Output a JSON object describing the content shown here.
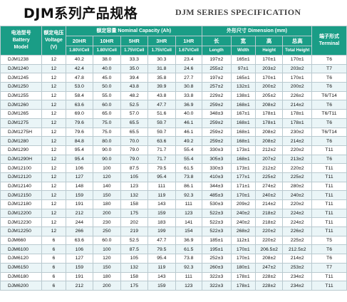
{
  "header": {
    "title": "DJM系列产品规格",
    "subtitle": "DJM SERIES SPECIFICATION"
  },
  "table": {
    "col_model": [
      "电池型号",
      "Battery",
      "Model"
    ],
    "col_voltage": [
      "额定电压",
      "Voltage (V)"
    ],
    "capacity_group": "额定容量 Nominal Capacity (Ah)",
    "dimension_group": "外形尺寸 Dimension (mm)",
    "col_terminal": [
      "端子形式",
      "Terminal"
    ],
    "capacity_cols": [
      {
        "rate": "20HR",
        "cutoff": "1.80V/Cell"
      },
      {
        "rate": "10HR",
        "cutoff": "1.80V/Cell"
      },
      {
        "rate": "5HR",
        "cutoff": "1.75V/Cell"
      },
      {
        "rate": "3HR",
        "cutoff": "1.75V/Cell"
      },
      {
        "rate": "1HR",
        "cutoff": "1.67V/Cell"
      }
    ],
    "dimension_cols": [
      {
        "zh": "长",
        "en": "Length"
      },
      {
        "zh": "宽",
        "en": "Width"
      },
      {
        "zh": "高",
        "en": "Height"
      },
      {
        "zh": "总高",
        "en": "Total Height"
      }
    ],
    "rows": [
      [
        "DJM1238",
        "12",
        "40.2",
        "38.0",
        "33.3",
        "30.3",
        "23.4",
        "197±2",
        "165±1",
        "170±1",
        "170±1",
        "T6"
      ],
      [
        "DJM1240",
        "12",
        "42.4",
        "40.0",
        "35.0",
        "31.8",
        "24.6",
        "255±2",
        "97±1",
        "203±2",
        "203±2",
        "T7"
      ],
      [
        "DJM1245",
        "12",
        "47.8",
        "45.0",
        "39.4",
        "35.8",
        "27.7",
        "197±2",
        "165±1",
        "170±1",
        "170±1",
        "T6"
      ],
      [
        "DJM1250",
        "12",
        "53.0",
        "50.0",
        "43.8",
        "39.9",
        "30.8",
        "257±2",
        "132±1",
        "200±2",
        "200±2",
        "T6"
      ],
      [
        "DJM1255",
        "12",
        "58.4",
        "55.0",
        "48.2",
        "43.8",
        "33.8",
        "229±2",
        "138±1",
        "205±2",
        "226±2",
        "T6/T14"
      ],
      [
        "DJM1260",
        "12",
        "63.6",
        "60.0",
        "52.5",
        "47.7",
        "36.9",
        "259±2",
        "168±1",
        "208±2",
        "214±2",
        "T6"
      ],
      [
        "DJM1265",
        "12",
        "69.0",
        "65.0",
        "57.0",
        "51.6",
        "40.0",
        "348±3",
        "167±1",
        "178±1",
        "178±1",
        "T6/T11"
      ],
      [
        "DJM1275",
        "12",
        "79.6",
        "75.0",
        "65.5",
        "59.7",
        "46.1",
        "259±2",
        "168±1",
        "178±1",
        "178±1",
        "T6"
      ],
      [
        "DJM1275H",
        "12",
        "79.6",
        "75.0",
        "65.5",
        "59.7",
        "46.1",
        "259±2",
        "168±1",
        "208±2",
        "230±2",
        "T6/T14"
      ],
      [
        "DJM1280",
        "12",
        "84.8",
        "80.0",
        "70.0",
        "63.6",
        "49.2",
        "259±2",
        "168±1",
        "208±2",
        "214±2",
        "T6"
      ],
      [
        "DJM1290",
        "12",
        "95.4",
        "90.0",
        "79.0",
        "71.7",
        "55.4",
        "330±3",
        "173±1",
        "212±2",
        "220±2",
        "T11"
      ],
      [
        "DJM1290H",
        "12",
        "95.4",
        "90.0",
        "79.0",
        "71.7",
        "55.4",
        "305±3",
        "168±1",
        "207±2",
        "213±2",
        "T6"
      ],
      [
        "DJM12100",
        "12",
        "106",
        "100",
        "87.5",
        "79.5",
        "61.5",
        "330±3",
        "173±1",
        "212±2",
        "220±2",
        "T11"
      ],
      [
        "DJM12120",
        "12",
        "127",
        "120",
        "105",
        "95.4",
        "73.8",
        "410±3",
        "177±1",
        "225±2",
        "225±2",
        "T11"
      ],
      [
        "DJM12140",
        "12",
        "148",
        "140",
        "123",
        "111",
        "86.1",
        "344±3",
        "171±1",
        "274±2",
        "280±2",
        "T11"
      ],
      [
        "DJM12150",
        "12",
        "159",
        "150",
        "132",
        "119",
        "92.3",
        "485±3",
        "170±1",
        "240±2",
        "240±2",
        "T11"
      ],
      [
        "DJM12180",
        "12",
        "191",
        "180",
        "158",
        "143",
        "111",
        "530±3",
        "209±2",
        "214±2",
        "220±2",
        "T11"
      ],
      [
        "DJM12200",
        "12",
        "212",
        "200",
        "175",
        "159",
        "123",
        "522±3",
        "240±2",
        "218±2",
        "224±2",
        "T11"
      ],
      [
        "DJM12230",
        "12",
        "244",
        "230",
        "202",
        "183",
        "141",
        "522±3",
        "240±2",
        "218±2",
        "224±2",
        "T11"
      ],
      [
        "DJM12250",
        "12",
        "266",
        "250",
        "219",
        "199",
        "154",
        "522±3",
        "268±2",
        "220±2",
        "226±2",
        "T11"
      ],
      [
        "DJM660",
        "6",
        "63.6",
        "60.0",
        "52.5",
        "47.7",
        "36.9",
        "185±1",
        "112±1",
        "220±2",
        "225±2",
        "T5"
      ],
      [
        "DJM6100",
        "6",
        "106",
        "100",
        "87.5",
        "79.5",
        "61.5",
        "195±1",
        "170±1",
        "206.5±2",
        "212.5±2",
        "T6"
      ],
      [
        "DJM6120",
        "6",
        "127",
        "120",
        "105",
        "95.4",
        "73.8",
        "252±3",
        "170±1",
        "208±2",
        "214±2",
        "T6"
      ],
      [
        "DJM6150",
        "6",
        "159",
        "150",
        "132",
        "119",
        "92.3",
        "260±3",
        "180±1",
        "247±2",
        "253±2",
        "T7"
      ],
      [
        "DJM6180",
        "6",
        "191",
        "180",
        "158",
        "143",
        "111",
        "322±3",
        "178±1",
        "228±2",
        "234±2",
        "T11"
      ],
      [
        "DJM6200",
        "6",
        "212",
        "200",
        "175",
        "159",
        "123",
        "322±3",
        "178±1",
        "228±2",
        "234±2",
        "T11"
      ]
    ]
  },
  "colors": {
    "header_bg": "#1a9d86",
    "header_text": "#ffffff",
    "row_alt": "#eaf5f7",
    "grid": "#b9c9cf"
  }
}
